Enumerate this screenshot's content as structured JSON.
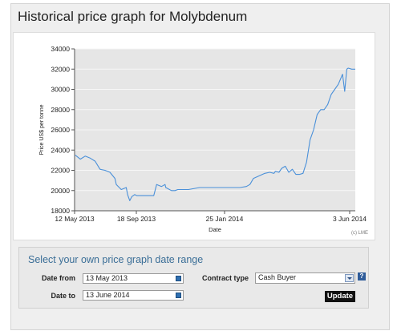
{
  "page": {
    "title": "Historical price graph for Molybdenum",
    "copyright": "(c) LME"
  },
  "chart_data": {
    "type": "line",
    "title": "",
    "xlabel": "Date",
    "ylabel": "Price US$ per tonne",
    "ylim": [
      18000,
      34000
    ],
    "yticks": [
      18000,
      20000,
      22000,
      24000,
      26000,
      28000,
      30000,
      32000,
      34000
    ],
    "xtick_labels": [
      "12 May 2013",
      "18 Sep 2013",
      "25 Jan 2014",
      "3 Jun 2014"
    ],
    "xrange": [
      "2013-05-12",
      "2014-06-13"
    ],
    "grid": "horizontal",
    "line_color": "#4a90d9",
    "plot_background": "#e6e6e6",
    "series": [
      {
        "x": [
          "2013-05-13",
          "2013-05-20",
          "2013-05-27",
          "2013-06-03",
          "2013-06-10",
          "2013-06-17",
          "2013-06-24",
          "2013-07-01",
          "2013-07-08",
          "2013-07-10",
          "2013-07-17",
          "2013-07-24",
          "2013-07-26",
          "2013-07-29",
          "2013-08-01",
          "2013-08-05",
          "2013-08-08",
          "2013-08-12",
          "2013-08-20",
          "2013-09-01",
          "2013-09-05",
          "2013-09-12",
          "2013-09-17",
          "2013-09-18",
          "2013-09-26",
          "2013-10-01",
          "2013-10-05",
          "2013-10-20",
          "2013-11-05",
          "2013-11-20",
          "2013-12-01",
          "2013-12-20",
          "2014-01-01",
          "2014-01-10",
          "2014-01-15",
          "2014-01-20",
          "2014-02-05",
          "2014-02-12",
          "2014-02-18",
          "2014-02-20",
          "2014-02-25",
          "2014-03-01",
          "2014-03-06",
          "2014-03-11",
          "2014-03-16",
          "2014-03-21",
          "2014-03-26",
          "2014-03-31",
          "2014-04-05",
          "2014-04-10",
          "2014-04-15",
          "2014-04-20",
          "2014-04-25",
          "2014-04-30",
          "2014-05-05",
          "2014-05-10",
          "2014-05-15",
          "2014-05-20",
          "2014-05-23",
          "2014-05-26",
          "2014-05-29",
          "2014-06-01",
          "2014-06-03",
          "2014-06-08",
          "2014-06-13"
        ],
        "y": [
          23500,
          23100,
          23400,
          23200,
          22900,
          22100,
          22000,
          21800,
          21200,
          20600,
          20100,
          20300,
          19600,
          19000,
          19400,
          19600,
          19500,
          19500,
          19500,
          19500,
          20600,
          20400,
          20600,
          20300,
          20000,
          20000,
          20100,
          20100,
          20300,
          20300,
          20300,
          20300,
          20300,
          20400,
          20600,
          21200,
          21700,
          21800,
          21700,
          21900,
          21800,
          22200,
          22400,
          21800,
          22100,
          21600,
          21600,
          21700,
          22800,
          25000,
          26000,
          27500,
          28000,
          28000,
          28500,
          29500,
          30000,
          30500,
          31000,
          31500,
          29800,
          32000,
          32100,
          32000,
          32000
        ]
      }
    ]
  },
  "form": {
    "title": "Select your own price graph date range",
    "date_from_label": "Date from",
    "date_from_value": "13 May 2013",
    "date_to_label": "Date to",
    "date_to_value": "13 June 2014",
    "contract_type_label": "Contract type",
    "contract_type_value": "Cash Buyer",
    "help_label": "?",
    "update_label": "Update"
  },
  "colors": {
    "form_title": "#3a6e97",
    "calendar_icon": "#2f6fb0",
    "update_button": "#111111"
  },
  "icons": [
    "calendar-icon",
    "dropdown-arrow-icon",
    "help-icon"
  ]
}
